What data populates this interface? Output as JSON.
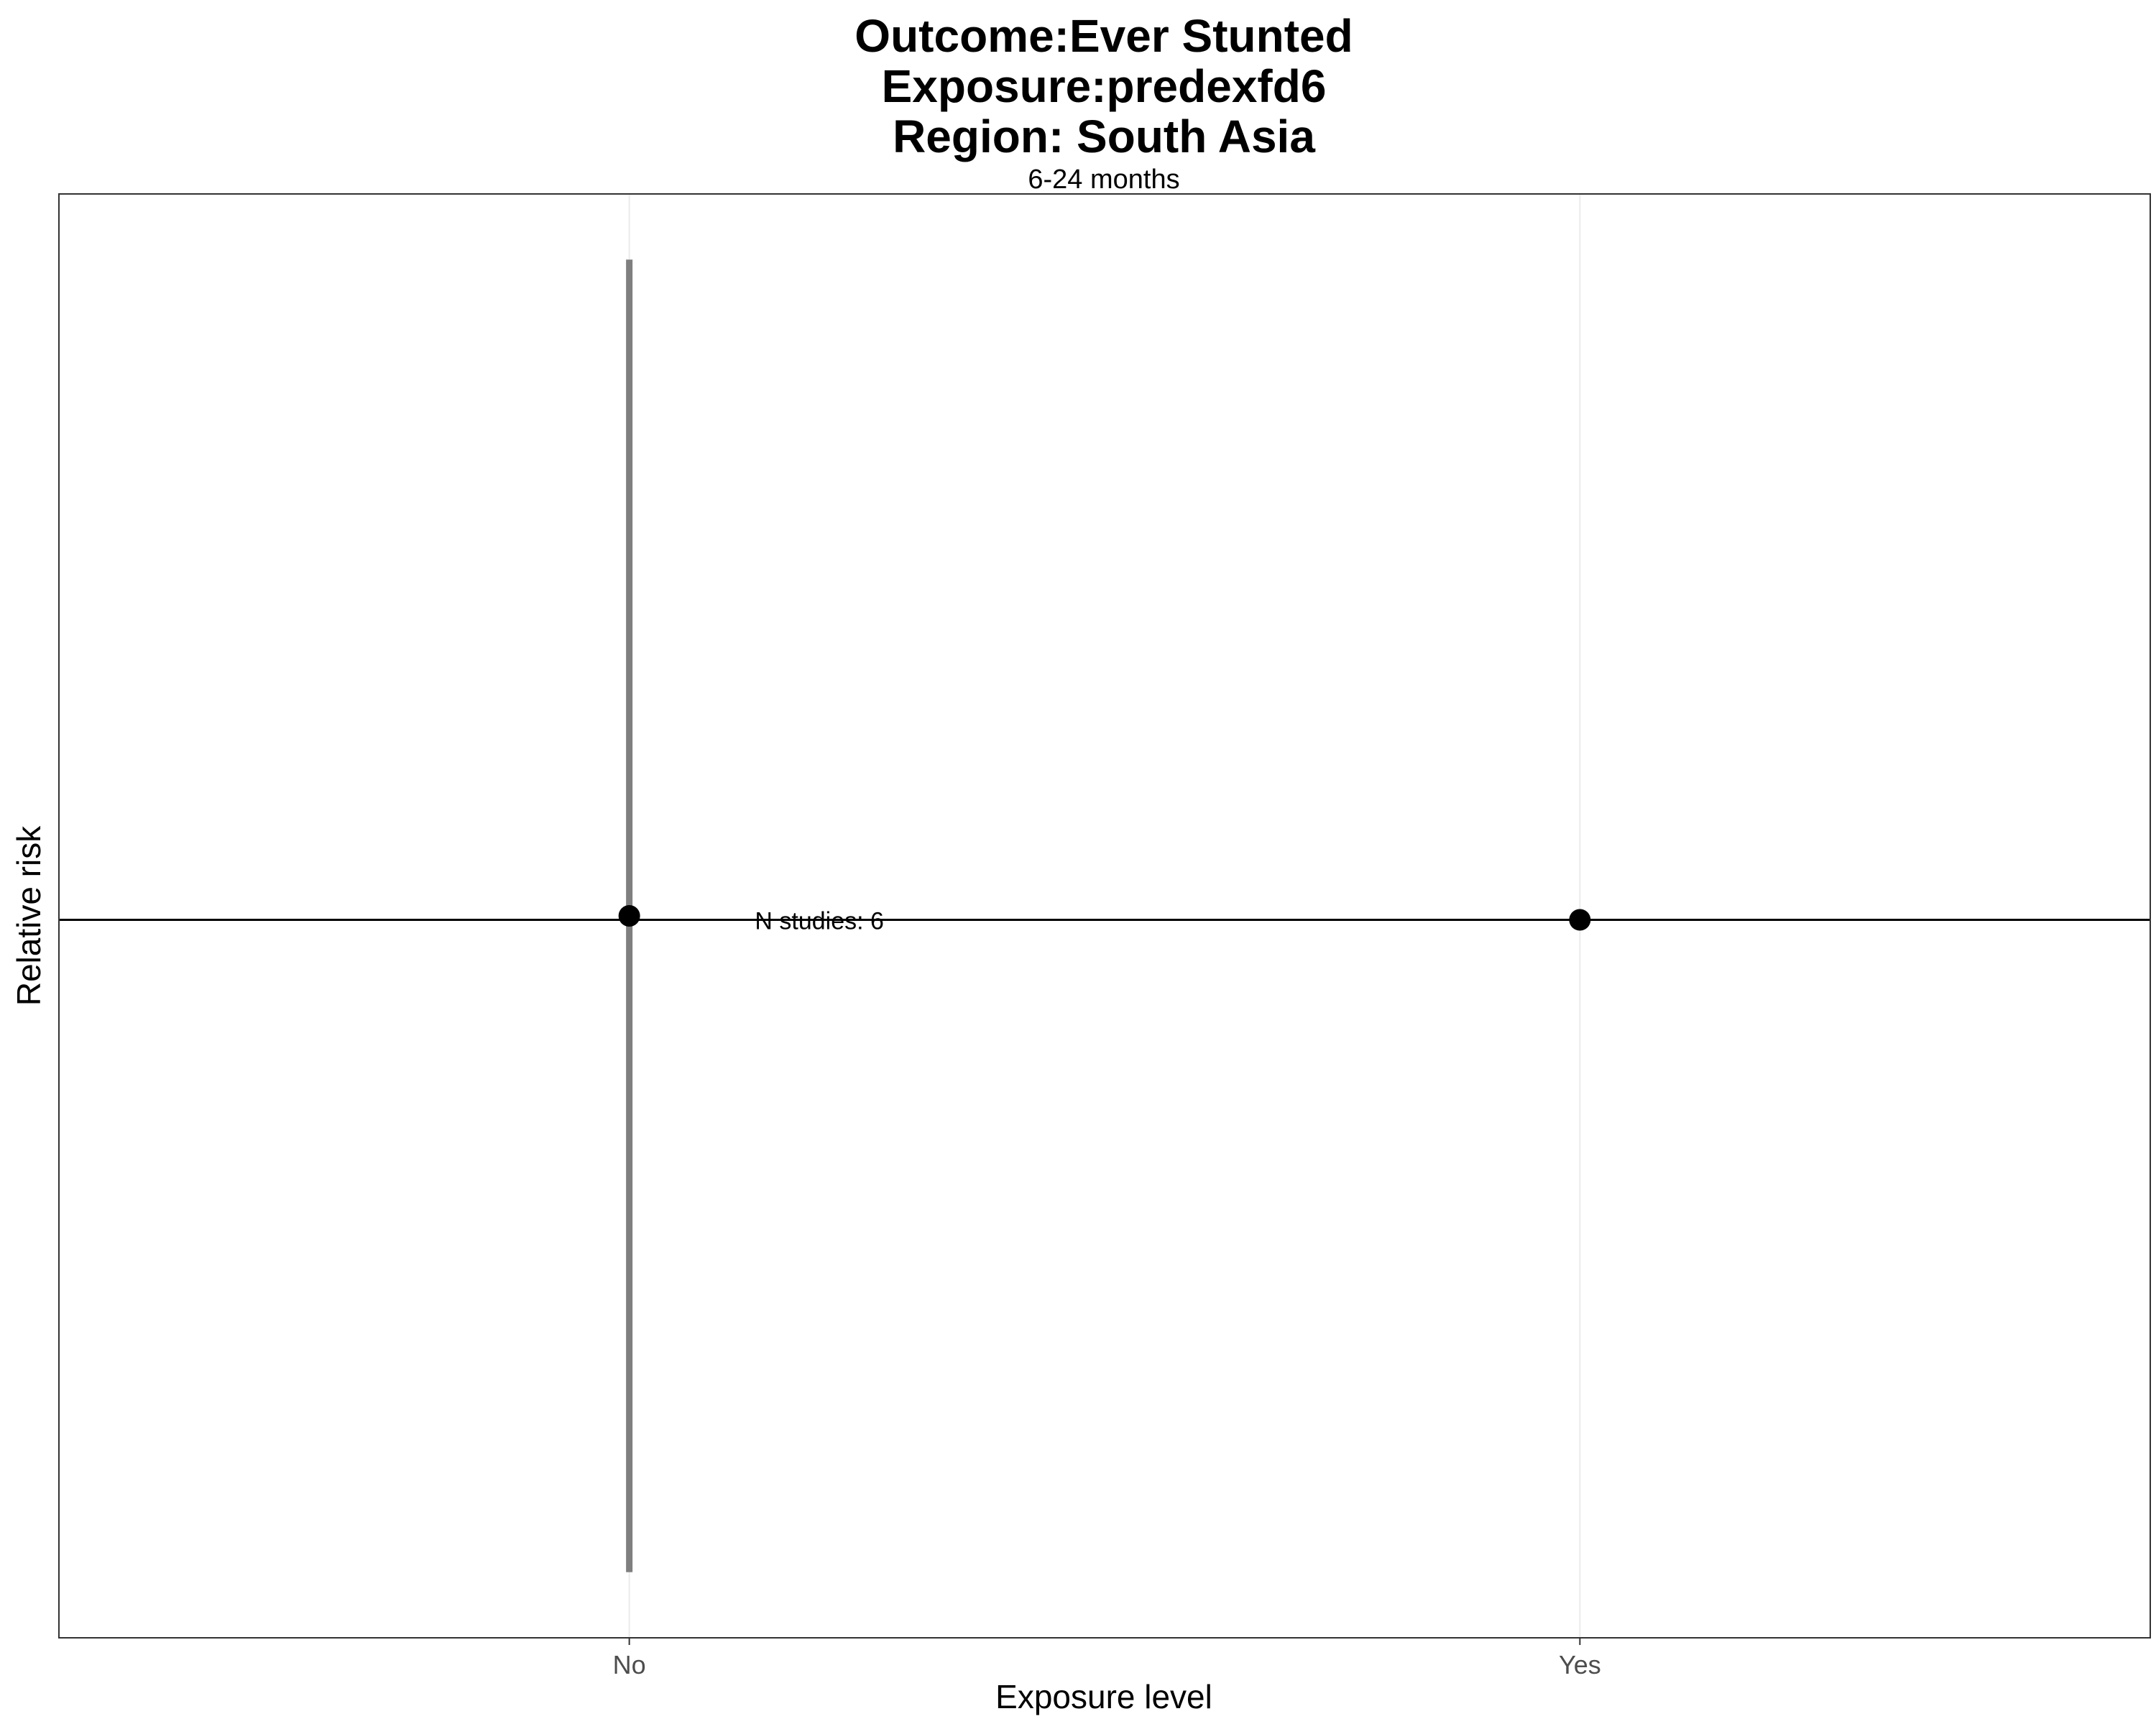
{
  "chart_data": {
    "type": "scatter",
    "title_lines": [
      "Outcome:Ever Stunted",
      "Exposure:predexfd6",
      "Region: South Asia"
    ],
    "facet_label": "6-24 months",
    "xlabel": "Exposure level",
    "ylabel": "Relative risk",
    "categories": [
      "No",
      "Yes"
    ],
    "points": [
      {
        "category": "No",
        "y": 1.0,
        "ci_low": 0.5,
        "ci_high": 1.5
      },
      {
        "category": "Yes",
        "y": 0.997
      }
    ],
    "reference_line": 0.997,
    "ylim": [
      0.45,
      1.55
    ],
    "annotation": {
      "text": "N studies: 6",
      "category_position": 1.2,
      "y": 0.997
    },
    "grid": "vertical-major",
    "colors": {
      "point": "#000000",
      "ci": "#7f7f7f",
      "grid": "#ebebeb",
      "panel_border": "#333333"
    }
  }
}
